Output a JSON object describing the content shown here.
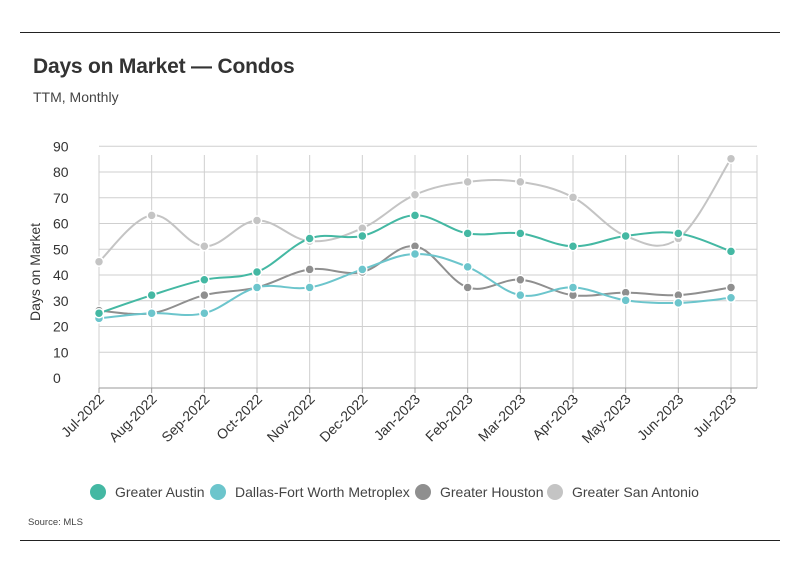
{
  "header": {
    "title": "Days on Market — Condos",
    "subtitle": "TTM, Monthly"
  },
  "footer": {
    "source": "Source: MLS"
  },
  "chart_data": {
    "type": "line",
    "title": "Days on Market — Condos",
    "subtitle": "TTM, Monthly",
    "xlabel": "",
    "ylabel": "Days on Market",
    "ylim": [
      0,
      90
    ],
    "yticks": [
      0,
      10,
      20,
      30,
      40,
      50,
      60,
      70,
      80,
      90
    ],
    "grid": true,
    "smooth": true,
    "legend_position": "bottom",
    "categories": [
      "Jul-2022",
      "Aug-2022",
      "Sep-2022",
      "Oct-2022",
      "Nov-2022",
      "Dec-2022",
      "Jan-2023",
      "Feb-2023",
      "Mar-2023",
      "Apr-2023",
      "May-2023",
      "Jun-2023",
      "Jul-2023"
    ],
    "series": [
      {
        "name": "Greater San Antonio",
        "color": "#c4c4c4",
        "values": [
          44,
          62,
          50,
          60,
          52,
          57,
          70,
          75,
          75,
          69,
          54,
          53,
          84
        ]
      },
      {
        "name": "Greater Houston",
        "color": "#8f8f8f",
        "values": [
          25,
          24,
          31,
          34,
          41,
          40,
          50,
          34,
          37,
          31,
          32,
          31,
          34
        ]
      },
      {
        "name": "Dallas-Fort Worth Metroplex",
        "color": "#6cc5cc",
        "values": [
          22,
          24,
          24,
          34,
          34,
          41,
          47,
          42,
          31,
          34,
          29,
          28,
          30
        ]
      },
      {
        "name": "Greater Austin",
        "color": "#44b8a3",
        "values": [
          24,
          31,
          37,
          40,
          53,
          54,
          62,
          55,
          55,
          50,
          54,
          55,
          48
        ]
      }
    ],
    "legend_order": [
      "Greater Austin",
      "Dallas-Fort Worth Metroplex",
      "Greater Houston",
      "Greater San Antonio"
    ]
  }
}
